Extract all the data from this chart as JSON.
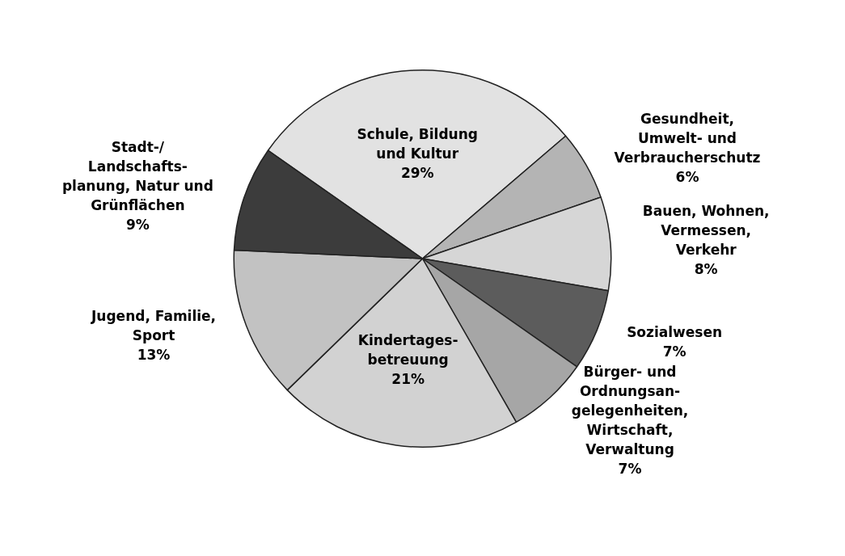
{
  "chart_data": {
    "type": "pie",
    "categories": [
      "Schule, Bildung\nund Kultur",
      "Gesundheit,\nUmwelt- und\nVerbraucherschutz",
      "Bauen, Wohnen,\nVermessen,\nVerkehr",
      "Sozialwesen",
      "Bürger- und\nOrdnungsan-\ngelegenheiten,\nWirtschaft,\nVerwaltung",
      "Kindertages-\nbetreuung",
      "Jugend, Familie,\nSport",
      "Stadt-/\nLandschafts-\nplanung, Natur und\nGrünflächen"
    ],
    "values": [
      29,
      6,
      8,
      7,
      7,
      21,
      13,
      9
    ],
    "value_labels": [
      "29%",
      "6%",
      "8%",
      "7%",
      "7%",
      "21%",
      "13%",
      "9%"
    ],
    "colors": [
      "#e2e2e2",
      "#b4b4b4",
      "#d6d6d6",
      "#5c5c5c",
      "#a6a6a6",
      "#d2d2d2",
      "#c2c2c2",
      "#3c3c3c"
    ],
    "legend": false
  }
}
